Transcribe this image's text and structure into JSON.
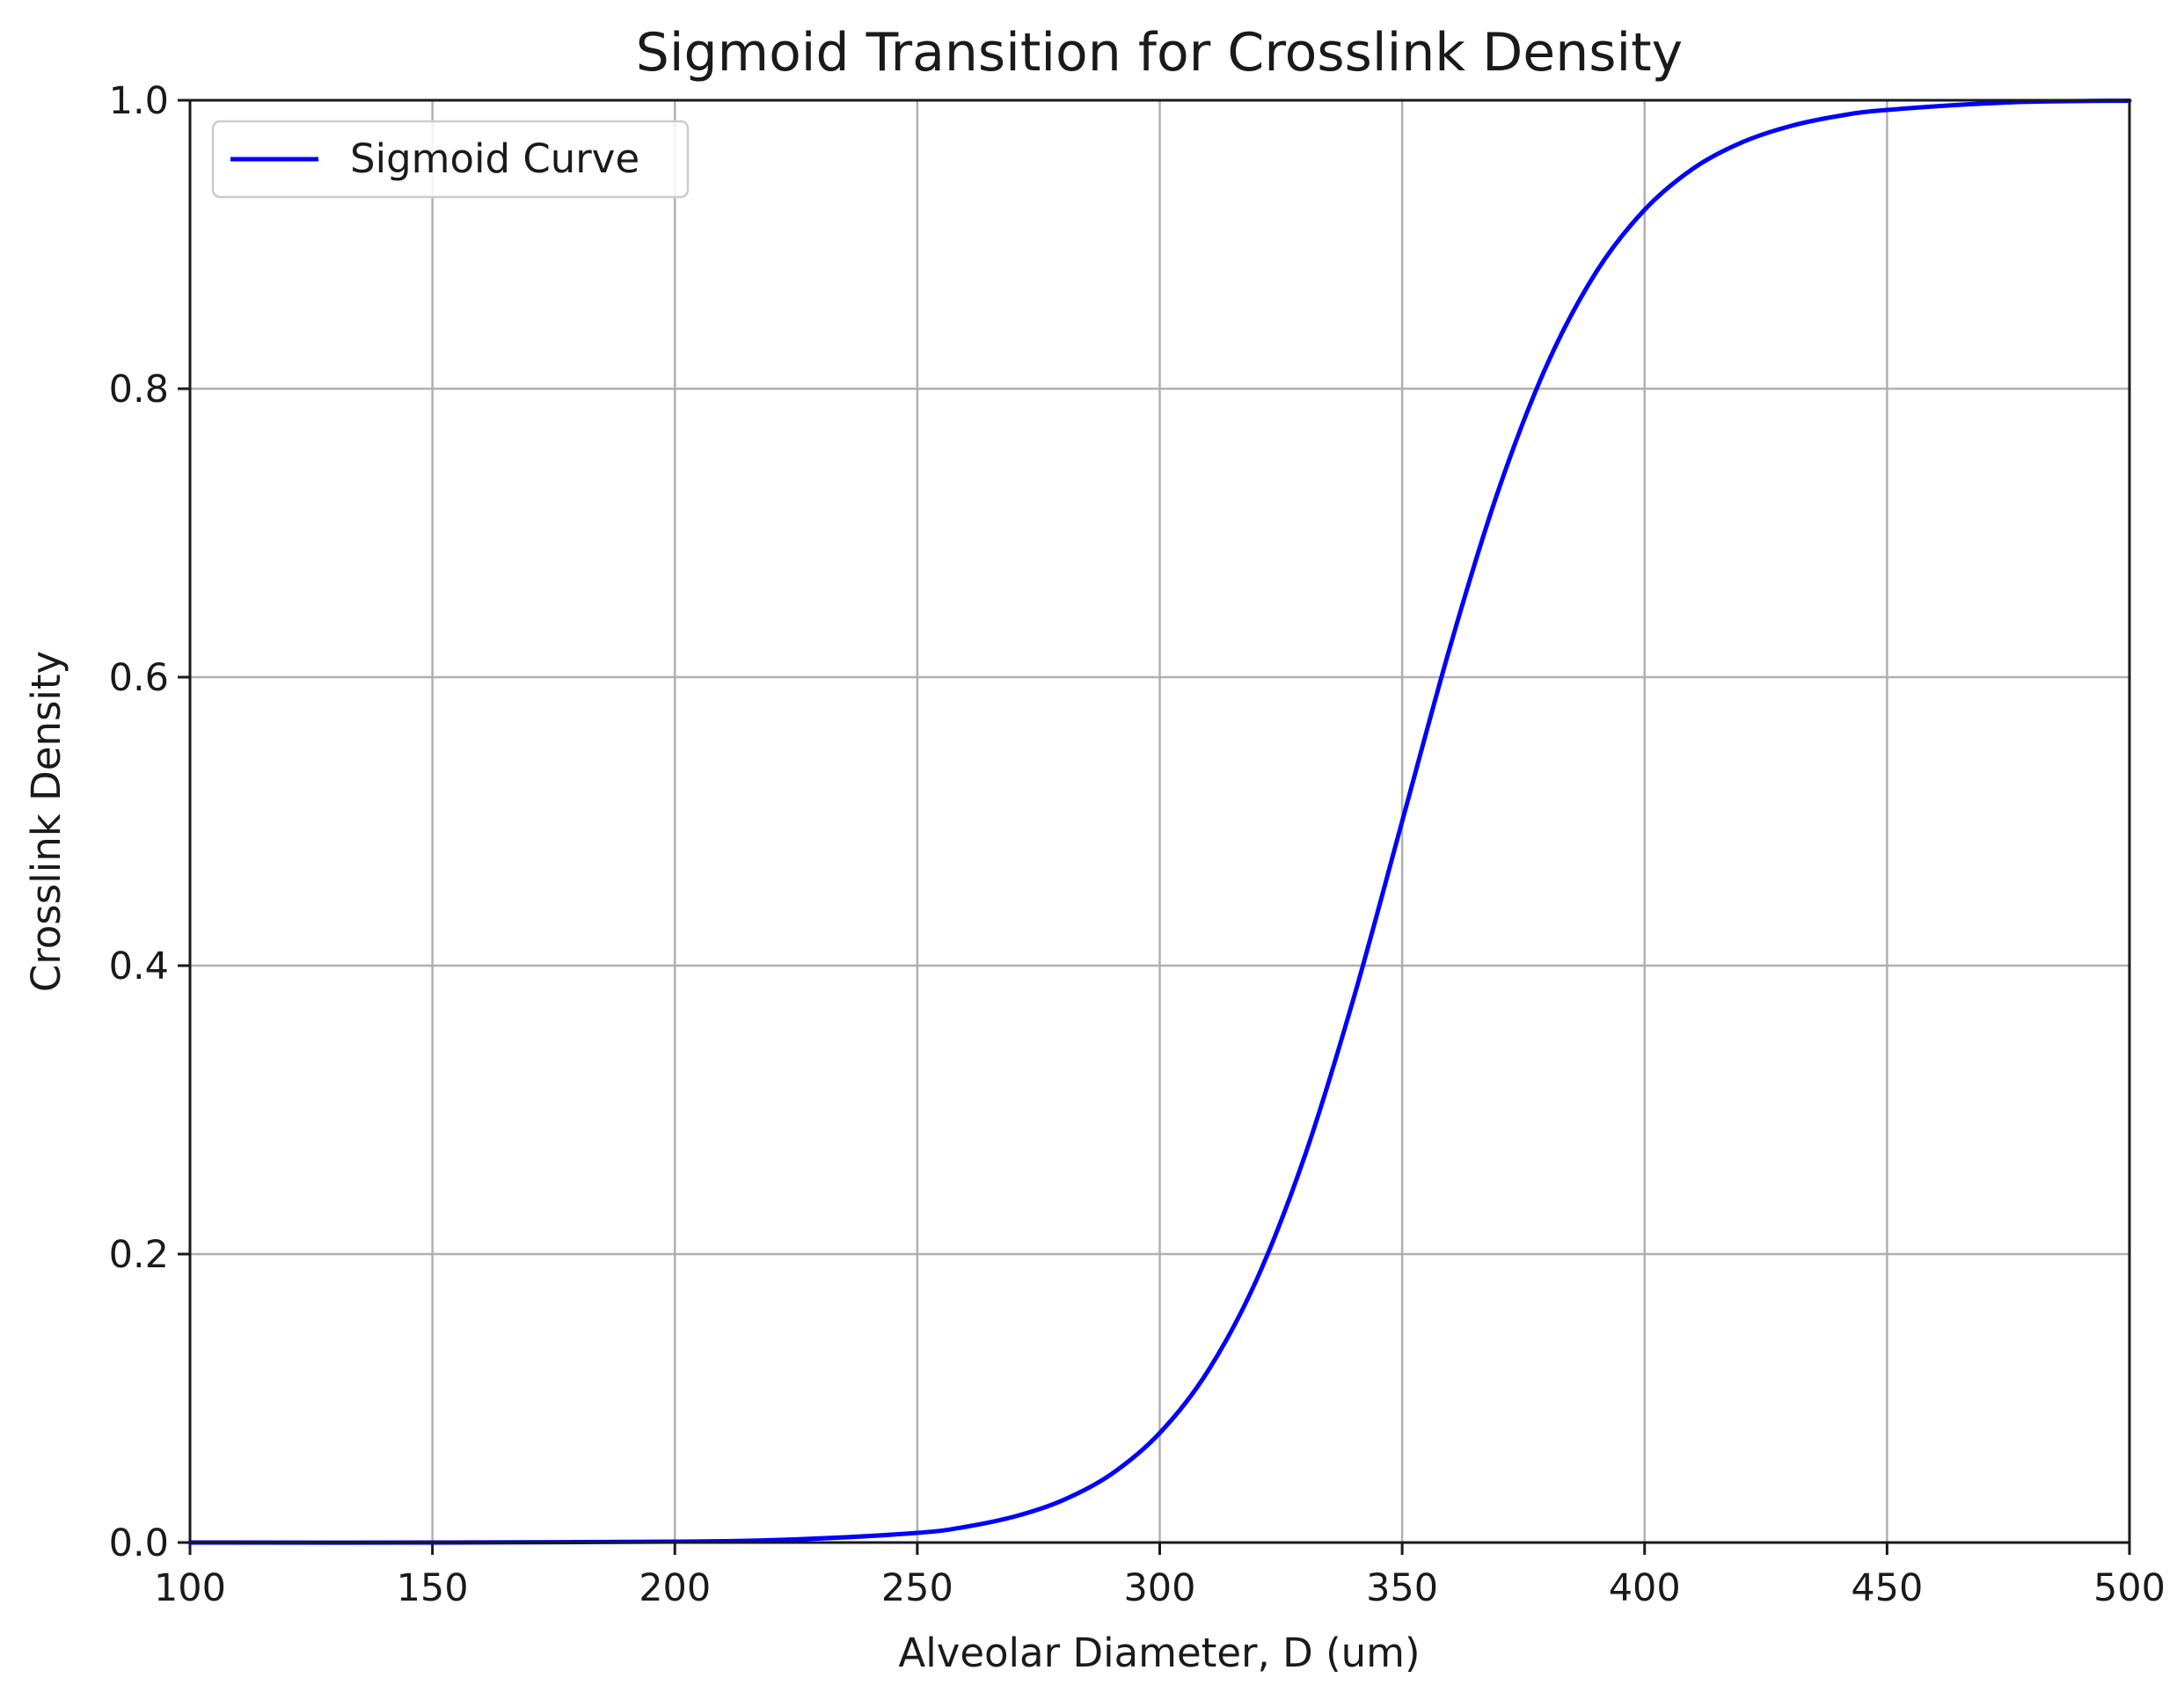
{
  "chart_data": {
    "type": "line",
    "title": "Sigmoid Transition for Crosslink Density",
    "xlabel": "Alveolar Diameter, D (um)",
    "ylabel": "Crosslink Density",
    "xlim": [
      100,
      500
    ],
    "ylim": [
      0.0,
      1.0
    ],
    "xticks": [
      100,
      150,
      200,
      250,
      300,
      350,
      400,
      450,
      500
    ],
    "xtick_labels": [
      "100",
      "150",
      "200",
      "250",
      "300",
      "350",
      "400",
      "450",
      "500"
    ],
    "yticks": [
      0.0,
      0.2,
      0.4,
      0.6,
      0.8,
      1.0
    ],
    "ytick_labels": [
      "0.0",
      "0.2",
      "0.4",
      "0.6",
      "0.8",
      "1.0"
    ],
    "grid": true,
    "legend_position": "upper-left",
    "series": [
      {
        "name": "Sigmoid Curve",
        "color": "#0000ff",
        "x": [
          100,
          150,
          200,
          225,
          250,
          260,
          270,
          280,
          290,
          300,
          310,
          320,
          330,
          340,
          350,
          360,
          370,
          380,
          390,
          400,
          410,
          420,
          430,
          440,
          450,
          475,
          500
        ],
        "y": [
          0.0,
          0.0,
          0.0006,
          0.0022,
          0.0067,
          0.0109,
          0.018,
          0.0293,
          0.0474,
          0.0759,
          0.1192,
          0.1824,
          0.2689,
          0.3775,
          0.5,
          0.6225,
          0.7311,
          0.8176,
          0.8808,
          0.9241,
          0.9526,
          0.9707,
          0.982,
          0.9891,
          0.9933,
          0.9985,
          0.9997
        ]
      }
    ]
  }
}
